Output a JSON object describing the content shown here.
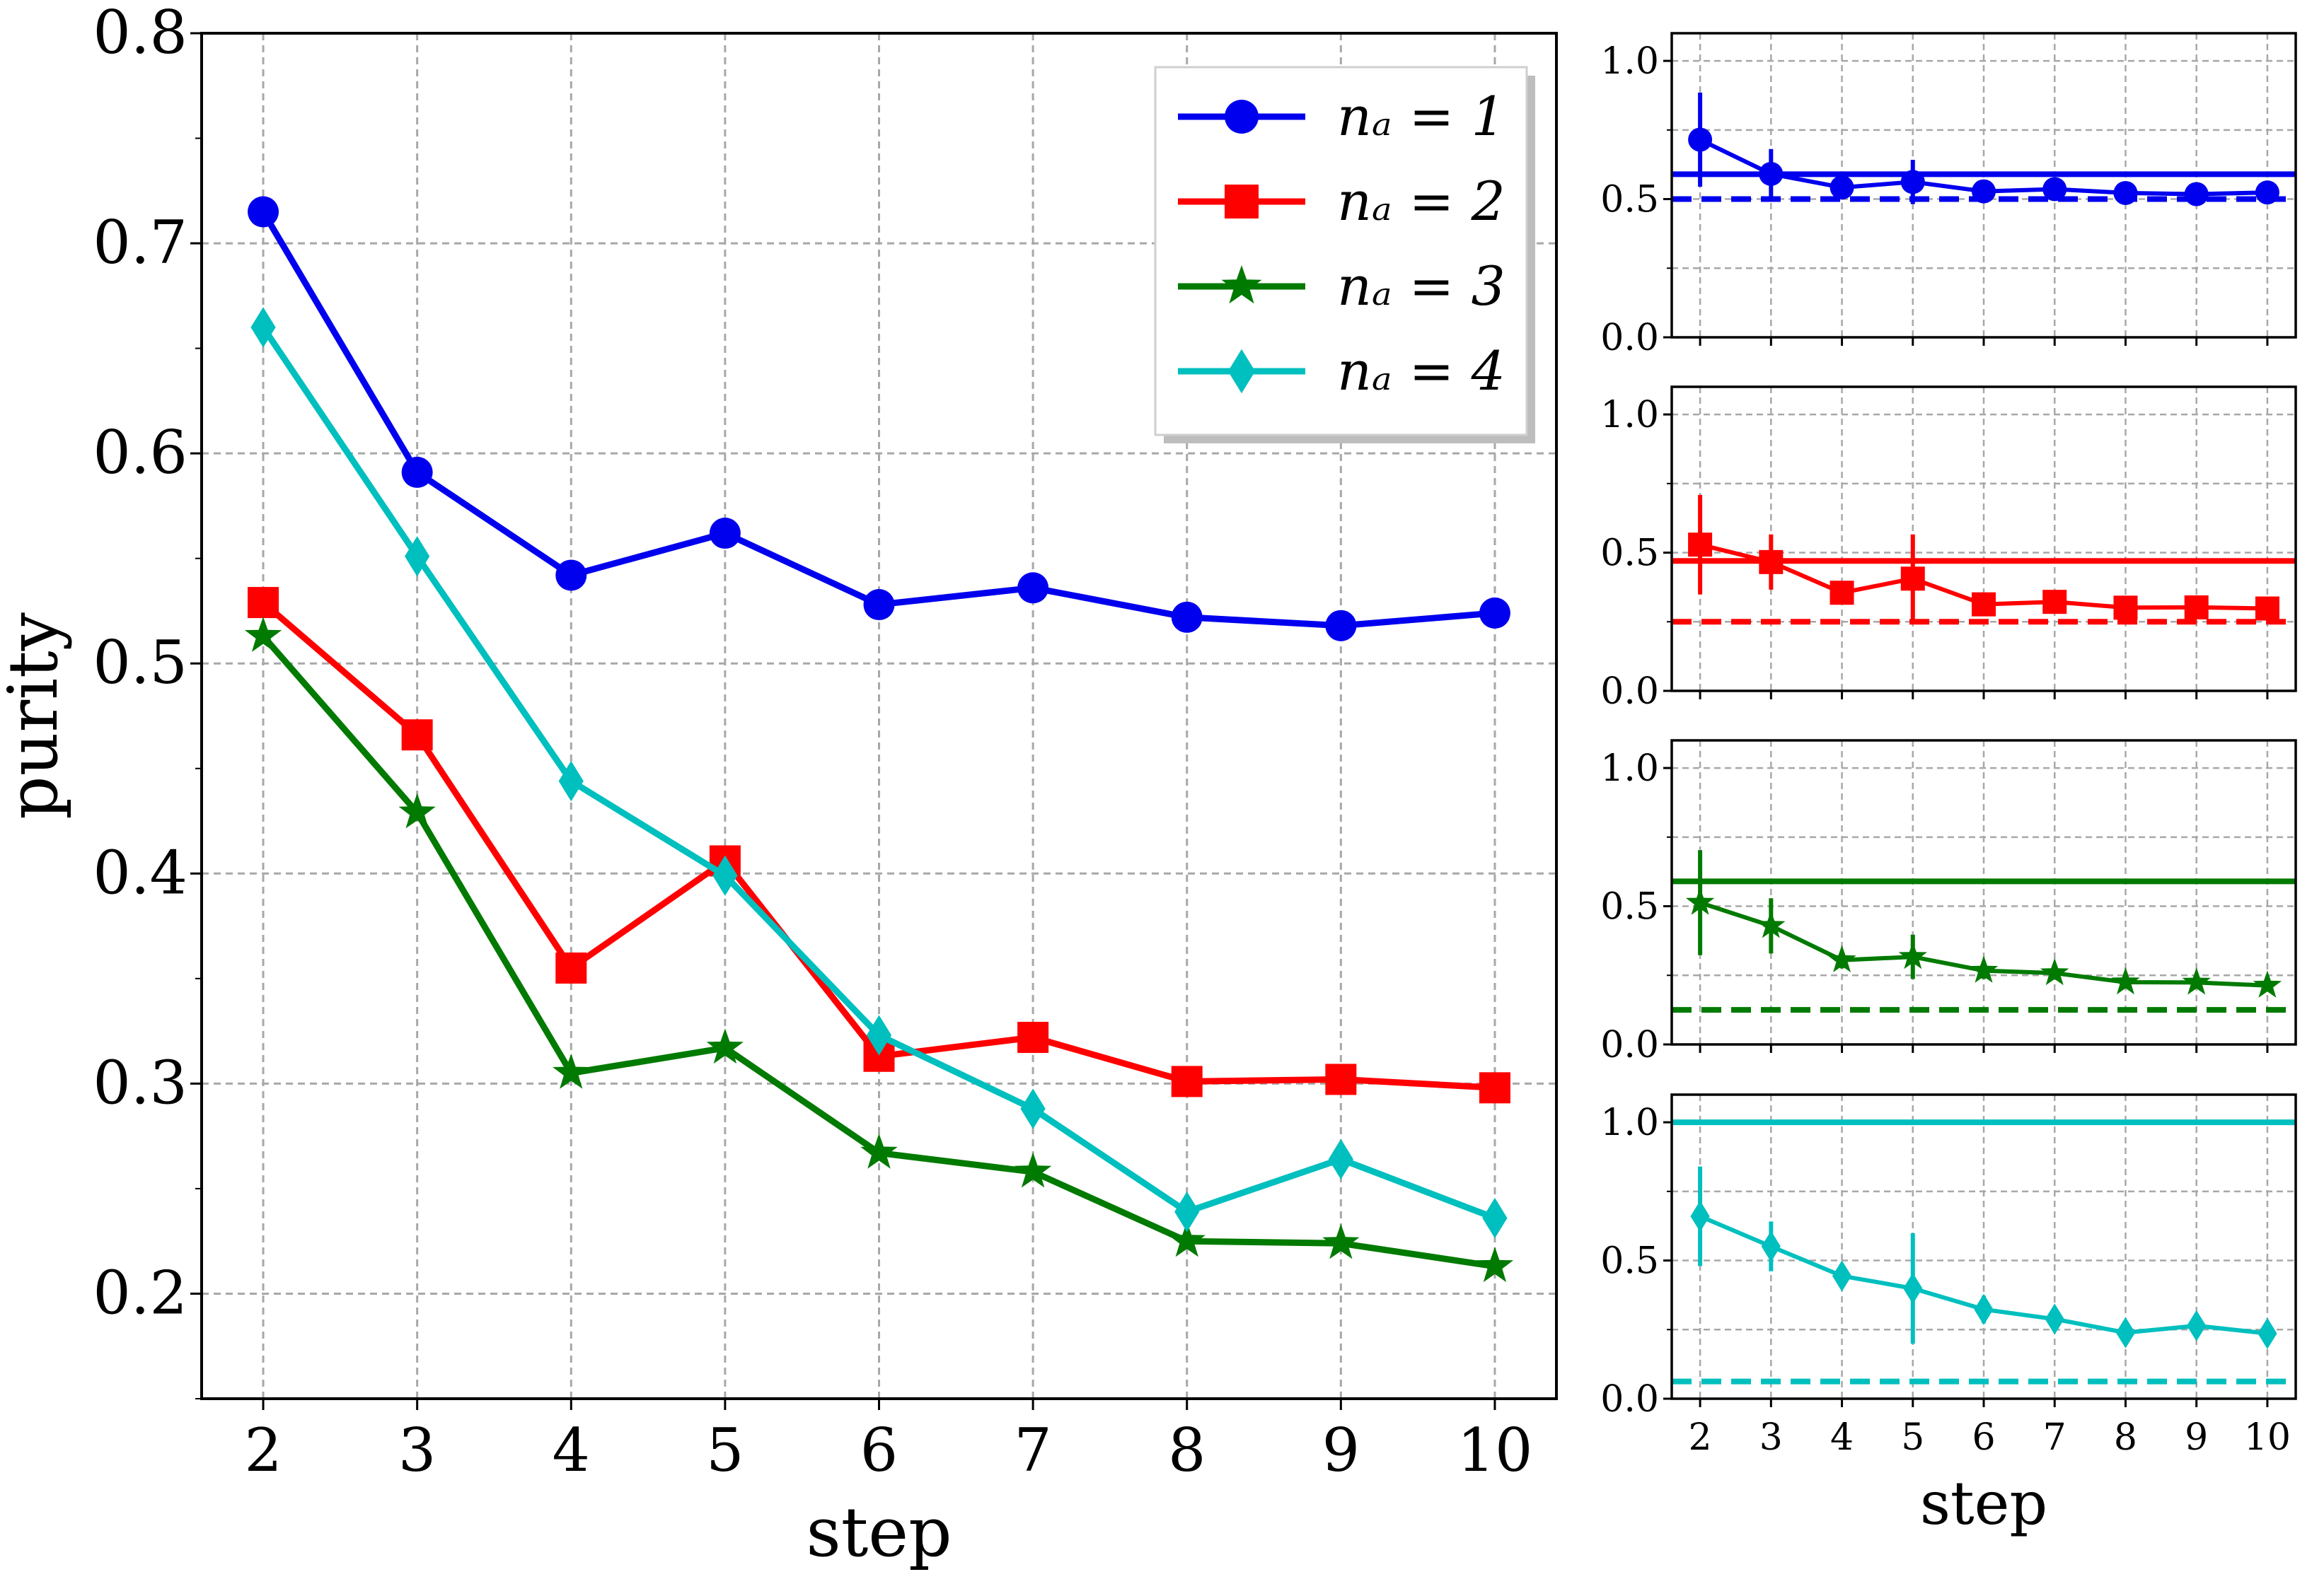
{
  "chart_data": [
    {
      "type": "line",
      "panel": "main",
      "xlabel": "step",
      "ylabel": "purity",
      "xlim": [
        1.6,
        10.4
      ],
      "ylim": [
        0.15,
        0.8
      ],
      "grid": true,
      "legend_position": "top-right",
      "x": [
        2,
        3,
        4,
        5,
        6,
        7,
        8,
        9,
        10
      ],
      "x_ticks": [
        "2",
        "3",
        "4",
        "5",
        "6",
        "7",
        "8",
        "9",
        "10"
      ],
      "y_ticks": [
        "0.2",
        "0.3",
        "0.4",
        "0.5",
        "0.6",
        "0.7",
        "0.8"
      ],
      "series": [
        {
          "name": "n_a = 1",
          "legend_label": "nₐ = 1",
          "color": "#0000ee",
          "marker": "circle",
          "values": [
            0.715,
            0.591,
            0.542,
            0.562,
            0.528,
            0.536,
            0.522,
            0.518,
            0.524
          ]
        },
        {
          "name": "n_a = 2",
          "legend_label": "nₐ = 2",
          "color": "#ff0000",
          "marker": "square",
          "values": [
            0.529,
            0.466,
            0.355,
            0.406,
            0.313,
            0.322,
            0.301,
            0.302,
            0.298
          ]
        },
        {
          "name": "n_a = 3",
          "legend_label": "nₐ = 3",
          "color": "#007a00",
          "marker": "star",
          "values": [
            0.513,
            0.429,
            0.305,
            0.317,
            0.267,
            0.258,
            0.225,
            0.224,
            0.213
          ]
        },
        {
          "name": "n_a = 4",
          "legend_label": "nₐ = 4",
          "color": "#00bfbf",
          "marker": "diamond",
          "values": [
            0.66,
            0.551,
            0.444,
            0.399,
            0.323,
            0.288,
            0.239,
            0.264,
            0.236
          ]
        }
      ]
    },
    {
      "type": "line",
      "panel": "inset-1",
      "xlabel": "",
      "ylabel": "",
      "ylim": [
        0.0,
        1.1
      ],
      "grid": true,
      "x": [
        2,
        3,
        4,
        5,
        6,
        7,
        8,
        9,
        10
      ],
      "y_ticks": [
        "0.0",
        "0.5",
        "1.0"
      ],
      "series": [
        {
          "name": "n_a = 1",
          "color": "#0000ee",
          "marker": "circle",
          "values": [
            0.715,
            0.591,
            0.542,
            0.562,
            0.528,
            0.536,
            0.522,
            0.518,
            0.524
          ],
          "errors": [
            0.17,
            0.09,
            0.03,
            0.08,
            0.02,
            0.02,
            0.02,
            0.02,
            0.02
          ]
        }
      ],
      "reference_lines": {
        "solid": 0.59,
        "dashed": 0.5
      }
    },
    {
      "type": "line",
      "panel": "inset-2",
      "xlabel": "",
      "ylabel": "",
      "ylim": [
        0.0,
        1.1
      ],
      "grid": true,
      "x": [
        2,
        3,
        4,
        5,
        6,
        7,
        8,
        9,
        10
      ],
      "y_ticks": [
        "0.0",
        "0.5",
        "1.0"
      ],
      "series": [
        {
          "name": "n_a = 2",
          "color": "#ff0000",
          "marker": "square",
          "values": [
            0.529,
            0.466,
            0.355,
            0.406,
            0.313,
            0.322,
            0.301,
            0.302,
            0.298
          ],
          "errors": [
            0.18,
            0.1,
            0.03,
            0.16,
            0.03,
            0.02,
            0.02,
            0.02,
            0.02
          ]
        }
      ],
      "reference_lines": {
        "solid": 0.47,
        "dashed": 0.25
      }
    },
    {
      "type": "line",
      "panel": "inset-3",
      "xlabel": "",
      "ylabel": "",
      "ylim": [
        0.0,
        1.1
      ],
      "grid": true,
      "x": [
        2,
        3,
        4,
        5,
        6,
        7,
        8,
        9,
        10
      ],
      "y_ticks": [
        "0.0",
        "0.5",
        "1.0"
      ],
      "series": [
        {
          "name": "n_a = 3",
          "color": "#007a00",
          "marker": "star",
          "values": [
            0.513,
            0.429,
            0.305,
            0.317,
            0.267,
            0.258,
            0.225,
            0.224,
            0.213
          ],
          "errors": [
            0.19,
            0.1,
            0.03,
            0.08,
            0.03,
            0.02,
            0.02,
            0.02,
            0.02
          ]
        }
      ],
      "reference_lines": {
        "solid": 0.59,
        "dashed": 0.125
      }
    },
    {
      "type": "line",
      "panel": "inset-4",
      "xlabel": "step",
      "ylabel": "",
      "ylim": [
        0.0,
        1.1
      ],
      "grid": true,
      "x": [
        2,
        3,
        4,
        5,
        6,
        7,
        8,
        9,
        10
      ],
      "x_ticks": [
        "2",
        "3",
        "4",
        "5",
        "6",
        "7",
        "8",
        "9",
        "10"
      ],
      "y_ticks": [
        "0.0",
        "0.5",
        "1.0"
      ],
      "series": [
        {
          "name": "n_a = 4",
          "color": "#00bfbf",
          "marker": "diamond",
          "values": [
            0.66,
            0.551,
            0.444,
            0.399,
            0.323,
            0.288,
            0.239,
            0.264,
            0.236
          ],
          "errors": [
            0.18,
            0.09,
            0.04,
            0.2,
            0.05,
            0.03,
            0.03,
            0.03,
            0.03
          ]
        }
      ],
      "reference_lines": {
        "solid": 1.0,
        "dashed": 0.0625
      }
    }
  ]
}
